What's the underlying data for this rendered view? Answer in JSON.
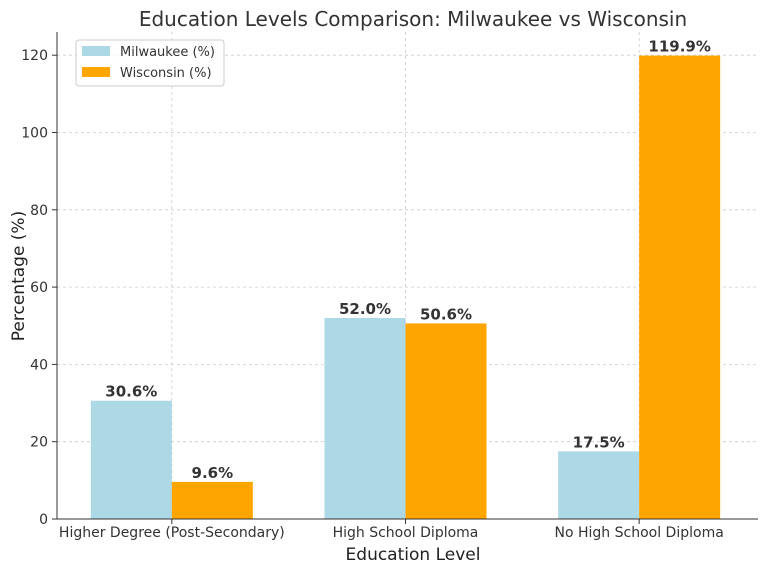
{
  "chart_data": {
    "type": "bar",
    "title": "Education Levels Comparison: Milwaukee vs Wisconsin",
    "xlabel": "Education Level",
    "ylabel": "Percentage (%)",
    "categories": [
      "Higher Degree (Post-Secondary)",
      "High School Diploma",
      "No High School Diploma"
    ],
    "series": [
      {
        "name": "Milwaukee (%)",
        "values": [
          30.6,
          52.0,
          17.5
        ],
        "labels": [
          "30.6%",
          "52.0%",
          "17.5%"
        ],
        "color": "#add8e6"
      },
      {
        "name": "Wisconsin (%)",
        "values": [
          9.6,
          50.6,
          119.9
        ],
        "labels": [
          "9.6%",
          "50.6%",
          "119.9%"
        ],
        "color": "#ffa500"
      }
    ],
    "ylim": [
      0,
      126
    ],
    "yticks": [
      0,
      20,
      40,
      60,
      80,
      100,
      120
    ],
    "grid": true,
    "legend": "top-left"
  }
}
